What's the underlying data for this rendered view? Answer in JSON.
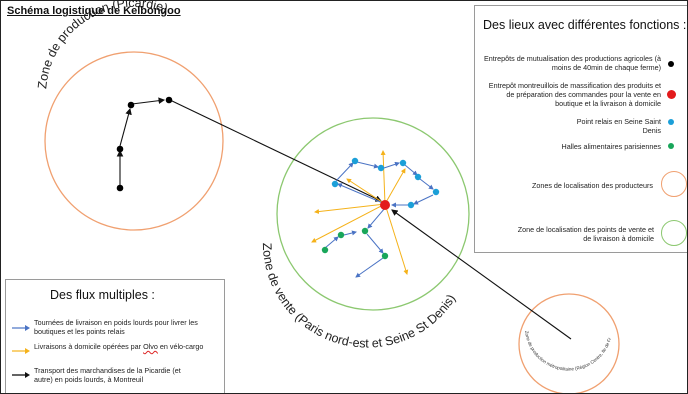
{
  "title": "Schéma logistique de Kelbongoo",
  "zones": {
    "production": "Zone de production (Picardie)",
    "sale": "Zone de vente (Paris nord-est et Seine St Denis)",
    "small": "Zone de production métropolitaine (Région Centre, Ile de Fr..."
  },
  "legend_places": {
    "heading": "Des lieux avec différentes fonctions :",
    "items": [
      {
        "text": "Entrepôts de mutualisation des productions agricoles (à moins de 40min de chaque ferme)",
        "color": "#000000"
      },
      {
        "text": "Entrepôt montreuillois de massification des produits et de préparation des commandes pour la vente en boutique et la livraison à domicile",
        "color": "#e31a1c"
      },
      {
        "text": "Point relais en Seine Saint Denis",
        "color": "#1b9fd8"
      },
      {
        "text": "Halles alimentaires parisiennes",
        "color": "#19a65a"
      },
      {
        "text": "Zones de localisation des producteurs",
        "color": "#f0a070"
      },
      {
        "text": "Zone de localisation des points de vente et de livraison à domicile",
        "color": "#8cc870"
      }
    ]
  },
  "legend_flows": {
    "heading": "Des flux multiples :",
    "items": [
      {
        "text": "Tournées de livraison en poids lourds pour livrer les boutiques et les points relais",
        "color": "#4a73c4"
      },
      {
        "text_before": "Livraisons à domicile opérées par ",
        "text_mark": "Olvo",
        "text_after": " en vélo-cargo",
        "color": "#f5b21a"
      },
      {
        "text": "Transport des marchandises de la Picardie (et autre) en poids lourds, à Montreuil",
        "color": "#111111"
      }
    ]
  }
}
